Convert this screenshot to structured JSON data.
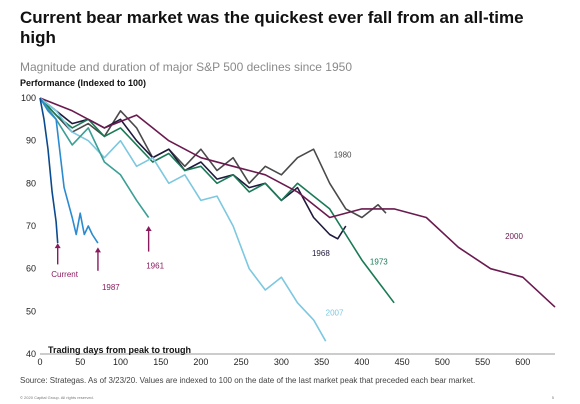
{
  "header": {
    "title": "Current bear market was the quickest ever fall from an all-time high",
    "subtitle": "Magnitude and duration of major S&P 500 declines since 1950"
  },
  "footer": {
    "source": "Source: Strategas. As of 3/23/20. Values are indexed to 100 on the date of the last market peak that preceded each bear market.",
    "copyright": "© 2020 Capital Group. All rights reserved.",
    "page_number": "5"
  },
  "colors": {
    "axis": "#9a9a9a",
    "grid": "#d9d9d9"
  },
  "chart_data": {
    "type": "line",
    "ylabel": "Performance (Indexed to 100)",
    "xlabel": "Trading days from peak to trough",
    "xlim": [
      0,
      640
    ],
    "ylim": [
      40,
      100
    ],
    "xticks": [
      0,
      50,
      100,
      150,
      200,
      250,
      300,
      350,
      400,
      450,
      500,
      550,
      600
    ],
    "yticks": [
      40,
      50,
      60,
      70,
      80,
      90,
      100
    ],
    "grid": false,
    "series": [
      {
        "name": "1980",
        "color": "#4a4a4a",
        "x": [
          0,
          20,
          40,
          60,
          80,
          100,
          120,
          140,
          160,
          180,
          200,
          220,
          240,
          260,
          280,
          300,
          320,
          340,
          360,
          380,
          400,
          420,
          430
        ],
        "y": [
          100,
          96,
          92,
          94,
          91,
          97,
          93,
          86,
          88,
          84,
          88,
          83,
          86,
          80,
          84,
          82,
          86,
          88,
          80,
          74,
          72,
          75,
          73
        ]
      },
      {
        "name": "1968",
        "color": "#1f1a3d",
        "x": [
          0,
          20,
          40,
          60,
          80,
          100,
          120,
          140,
          160,
          180,
          200,
          220,
          240,
          260,
          280,
          300,
          320,
          340,
          360,
          370,
          380
        ],
        "y": [
          100,
          97,
          94,
          95,
          93,
          95,
          90,
          86,
          88,
          83,
          85,
          81,
          82,
          79,
          80,
          76,
          79,
          72,
          68,
          67,
          70
        ]
      },
      {
        "name": "1973",
        "color": "#1a7a55",
        "x": [
          0,
          20,
          40,
          60,
          80,
          100,
          120,
          140,
          160,
          180,
          200,
          220,
          240,
          260,
          280,
          300,
          320,
          340,
          360,
          380,
          400,
          420,
          440
        ],
        "y": [
          100,
          96,
          93,
          95,
          91,
          93,
          89,
          85,
          87,
          83,
          84,
          80,
          82,
          78,
          80,
          76,
          80,
          77,
          74,
          68,
          62,
          57,
          52
        ]
      },
      {
        "name": "2000",
        "color": "#6a1a4e",
        "x": [
          0,
          40,
          80,
          120,
          160,
          200,
          240,
          280,
          320,
          360,
          400,
          440,
          480,
          520,
          560,
          600,
          640
        ],
        "y": [
          100,
          97,
          93,
          96,
          90,
          86,
          84,
          82,
          78,
          72,
          74,
          74,
          72,
          65,
          60,
          58,
          51
        ]
      },
      {
        "name": "2007",
        "color": "#7cc8e0",
        "x": [
          0,
          20,
          40,
          60,
          80,
          100,
          120,
          140,
          160,
          180,
          200,
          220,
          240,
          260,
          280,
          300,
          320,
          340,
          355
        ],
        "y": [
          100,
          97,
          92,
          90,
          86,
          90,
          84,
          86,
          80,
          82,
          76,
          77,
          70,
          60,
          55,
          58,
          52,
          48,
          43
        ]
      },
      {
        "name": "1961",
        "color": "#3a9f95",
        "x": [
          0,
          20,
          40,
          60,
          80,
          100,
          120,
          135
        ],
        "y": [
          100,
          95,
          89,
          93,
          85,
          82,
          76,
          72
        ]
      },
      {
        "name": "1987",
        "color": "#2a8bd0",
        "x": [
          0,
          10,
          20,
          30,
          40,
          45,
          50,
          55,
          60,
          65,
          72
        ],
        "y": [
          100,
          97,
          95,
          79,
          72,
          68,
          73,
          68,
          70,
          68,
          66
        ]
      },
      {
        "name": "Current",
        "color": "#0a4a8f",
        "x": [
          0,
          5,
          10,
          15,
          20,
          22
        ],
        "y": [
          100,
          95,
          88,
          78,
          71,
          66
        ]
      }
    ],
    "annotations": [
      {
        "text": "1980",
        "x": 365,
        "y": 86,
        "color": "#4a4a4a"
      },
      {
        "text": "1968",
        "x": 338,
        "y": 63,
        "color": "#1f1a3d"
      },
      {
        "text": "1973",
        "x": 410,
        "y": 61,
        "color": "#1a7a55"
      },
      {
        "text": "2000",
        "x": 578,
        "y": 67,
        "color": "#6a1a4e"
      },
      {
        "text": "2007",
        "x": 355,
        "y": 49,
        "color": "#7cc8e0"
      },
      {
        "text": "1961",
        "x": 132,
        "y": 60,
        "color": "#8a1a5e"
      },
      {
        "text": "1987",
        "x": 77,
        "y": 55,
        "color": "#8a1a5e"
      },
      {
        "text": "Current",
        "x": 14,
        "y": 58,
        "color": "#8a1a5e"
      }
    ],
    "arrows": [
      {
        "x": 22,
        "y_from": 61,
        "y_to": 66,
        "color": "#8a1a5e"
      },
      {
        "x": 72,
        "y_from": 59.5,
        "y_to": 65,
        "color": "#8a1a5e"
      },
      {
        "x": 135,
        "y_from": 64,
        "y_to": 70,
        "color": "#8a1a5e"
      }
    ]
  }
}
